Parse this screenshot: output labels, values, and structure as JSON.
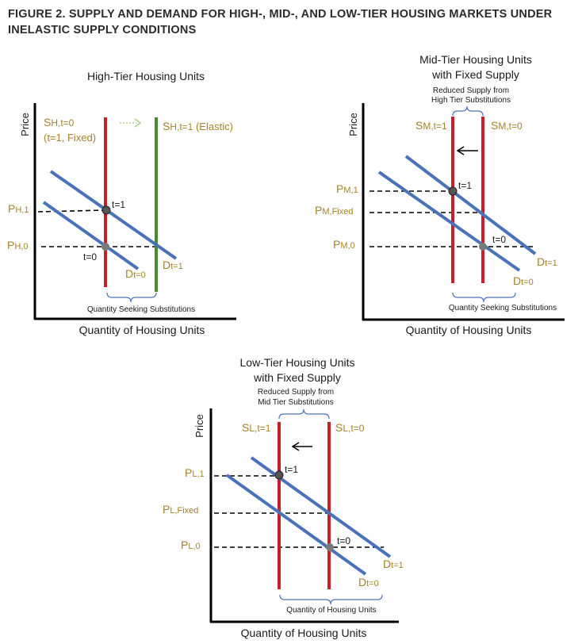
{
  "figure": {
    "title": "FIGURE 2. SUPPLY AND DEMAND FOR HIGH-, MID-, AND LOW-TIER HOUSING MARKETS UNDER INELASTIC SUPPLY CONDITIONS"
  },
  "colors": {
    "supply_fixed": "#c8202a",
    "supply_elastic": "#4a8a35",
    "demand": "#4a72b8",
    "price_label": "#a5822a",
    "axis": "#000000",
    "bracket": "#4a72b8",
    "point_t1": "#555555",
    "point_t0": "#7a7a7a",
    "elastic_arrow": "#a9d08e"
  },
  "panels": {
    "high": {
      "title": "High-Tier Housing Units",
      "y_axis": "Price",
      "x_axis": "Quantity of Housing Units",
      "supply_fixed": {
        "s": "S",
        "sub": "H,t=0",
        "line2": "(t=1, Fixed)"
      },
      "supply_elastic": {
        "s": "S",
        "sub": "H,t=1",
        "suffix": " (Elastic)"
      },
      "price_t1": {
        "p": "P",
        "sub": "H,1"
      },
      "price_t0": {
        "p": "P",
        "sub": "H,0"
      },
      "point_t1": "t=1",
      "point_t0": "t=0",
      "demand_t0": {
        "d": "D",
        "sub": "t=0"
      },
      "demand_t1": {
        "d": "D",
        "sub": "t=1"
      },
      "bracket_label": "Quantity Seeking Substitutions"
    },
    "mid": {
      "title_line1": "Mid-Tier Housing Units",
      "title_line2": "with Fixed Supply",
      "y_axis": "Price",
      "x_axis": "Quantity of Housing Units",
      "reduced_line1": "Reduced Supply from",
      "reduced_line2": "High Tier Substitutions",
      "supply_t1": {
        "s": "S",
        "sub": "M,t=1"
      },
      "supply_t0": {
        "s": "S",
        "sub": "M,t=0"
      },
      "price_1": {
        "p": "P",
        "sub": "M,1"
      },
      "price_fixed": {
        "p": "P",
        "sub": "M,Fixed"
      },
      "price_0": {
        "p": "P",
        "sub": "M,0"
      },
      "point_t1": "t=1",
      "point_t0": "t=0",
      "demand_t1": {
        "d": "D",
        "sub": "t=1"
      },
      "demand_t0": {
        "d": "D",
        "sub": "t=0"
      },
      "bracket_label": "Quantity Seeking Substitutions"
    },
    "low": {
      "title_line1": "Low-Tier Housing Units",
      "title_line2": "with Fixed Supply",
      "y_axis": "Price",
      "x_axis": "Quantity of Housing Units",
      "reduced_line1": "Reduced Supply from",
      "reduced_line2": "Mid Tier Substitutions",
      "supply_t1": {
        "s": "S",
        "sub": "L,t=1"
      },
      "supply_t0": {
        "s": "S",
        "sub": "L,t=0"
      },
      "price_1": {
        "p": "P",
        "sub": "L,1"
      },
      "price_fixed": {
        "p": "P",
        "sub": "L,Fixed"
      },
      "price_0": {
        "p": "P",
        "sub": "L,0"
      },
      "point_t1": "t=1",
      "point_t0": "t=0",
      "demand_t1": {
        "d": "D",
        "sub": "t=1"
      },
      "demand_t0": {
        "d": "D",
        "sub": "t=0"
      },
      "bracket_label": "Quantity of Housing Units"
    }
  }
}
